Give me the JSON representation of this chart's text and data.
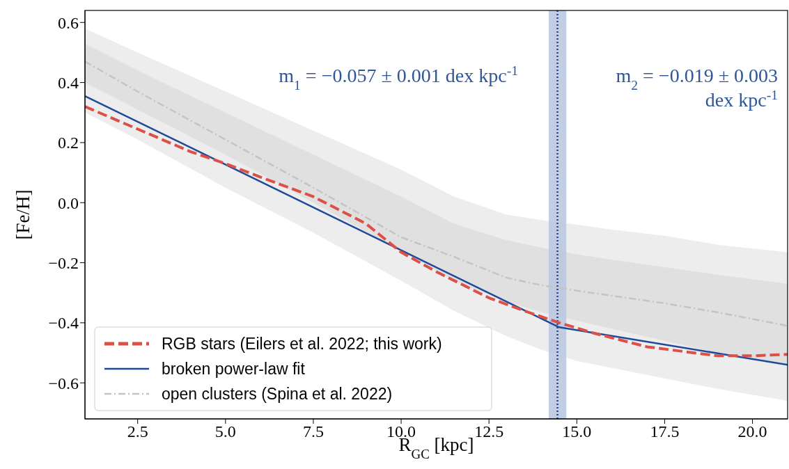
{
  "chart_data": {
    "type": "line",
    "xlabel": "R$_{GC}$ [kpc]",
    "ylabel": "[Fe/H]",
    "xlim": [
      1,
      21
    ],
    "ylim": [
      -0.72,
      0.64
    ],
    "xticks": [
      {
        "value": 2.5,
        "label": "2.5"
      },
      {
        "value": 5,
        "label": "5.0"
      },
      {
        "value": 7.5,
        "label": "7.5"
      },
      {
        "value": 10,
        "label": "10.0"
      },
      {
        "value": 12.5,
        "label": "12.5"
      },
      {
        "value": 15,
        "label": "15.0"
      },
      {
        "value": 17.5,
        "label": "17.5"
      },
      {
        "value": 20,
        "label": "20.0"
      }
    ],
    "yticks": [
      {
        "value": -0.6,
        "label": "−0.6"
      },
      {
        "value": -0.4,
        "label": "−0.4"
      },
      {
        "value": -0.2,
        "label": "−0.2"
      },
      {
        "value": 0,
        "label": "0.0"
      },
      {
        "value": 0.2,
        "label": "0.2"
      },
      {
        "value": 0.4,
        "label": "0.4"
      },
      {
        "value": 0.6,
        "label": "0.6"
      }
    ],
    "legend": "bottom left",
    "grid": false,
    "marker": "none",
    "series": [
      {
        "name": "RGB stars (Eilers et al. 2022; this work)",
        "color": "#dc5047",
        "line_style": "dashed",
        "x": [
          1,
          2.5,
          4,
          5,
          6,
          7.5,
          9,
          10,
          11,
          12.5,
          13.5,
          14.5,
          15.5,
          17,
          18,
          19,
          20,
          21
        ],
        "values": [
          0.32,
          0.245,
          0.17,
          0.13,
          0.085,
          0.02,
          -0.07,
          -0.165,
          -0.23,
          -0.317,
          -0.36,
          -0.4,
          -0.435,
          -0.48,
          -0.495,
          -0.51,
          -0.51,
          -0.505
        ]
      },
      {
        "name": "broken power-law fit",
        "color": "#1f4a99",
        "line_style": "solid",
        "x": [
          1,
          14.5,
          21
        ],
        "values": [
          0.355,
          -0.415,
          -0.54
        ]
      },
      {
        "name": "open clusters (Spina et al. 2022)",
        "color": "#c4c4c4",
        "line_style": "dashdot",
        "x": [
          1,
          2.5,
          5,
          7.5,
          10,
          11.5,
          13,
          14,
          15,
          16,
          17.5,
          19,
          21
        ],
        "values": [
          0.47,
          0.37,
          0.21,
          0.05,
          -0.115,
          -0.18,
          -0.25,
          -0.275,
          -0.293,
          -0.31,
          -0.335,
          -0.365,
          -0.41
        ],
        "lower": [
          0.4,
          0.31,
          0.16,
          0.0,
          -0.16,
          -0.26,
          -0.33,
          -0.365,
          -0.393,
          -0.42,
          -0.46,
          -0.5,
          -0.54
        ],
        "upper": [
          0.53,
          0.44,
          0.3,
          0.16,
          0.02,
          -0.07,
          -0.125,
          -0.15,
          -0.172,
          -0.19,
          -0.215,
          -0.24,
          -0.27
        ]
      },
      {
        "color": "#c4c4c4",
        "x": [
          1,
          2.5,
          5,
          7.5,
          10,
          11.5,
          13,
          14,
          15,
          16,
          17.5,
          19,
          21
        ],
        "values": [
          null,
          null,
          null,
          null,
          null,
          null,
          null,
          null,
          null,
          null,
          null,
          null,
          null
        ],
        "lower": [
          0.3,
          0.21,
          0.05,
          -0.1,
          -0.26,
          -0.36,
          -0.445,
          -0.49,
          -0.527,
          -0.55,
          -0.585,
          -0.62,
          -0.66
        ],
        "upper": [
          0.58,
          0.5,
          0.37,
          0.24,
          0.11,
          0.02,
          -0.04,
          -0.058,
          -0.073,
          -0.09,
          -0.11,
          -0.14,
          -0.165
        ]
      }
    ],
    "bands": [
      {
        "axis": "x",
        "from": 14.2,
        "to": 14.7,
        "color": "#b7c5df"
      }
    ],
    "ref_lines": [
      {
        "axis": "x",
        "value": 14.45,
        "color": "#1f3f8f",
        "line_style": "dotted"
      }
    ],
    "annotations": [
      "m$_{1}$ = −0.057 ± 0.001 dex kpc$^{-1}$",
      "m$_{2}$ = −0.019 ± 0.003 dex kpc$^{-1}$"
    ]
  }
}
